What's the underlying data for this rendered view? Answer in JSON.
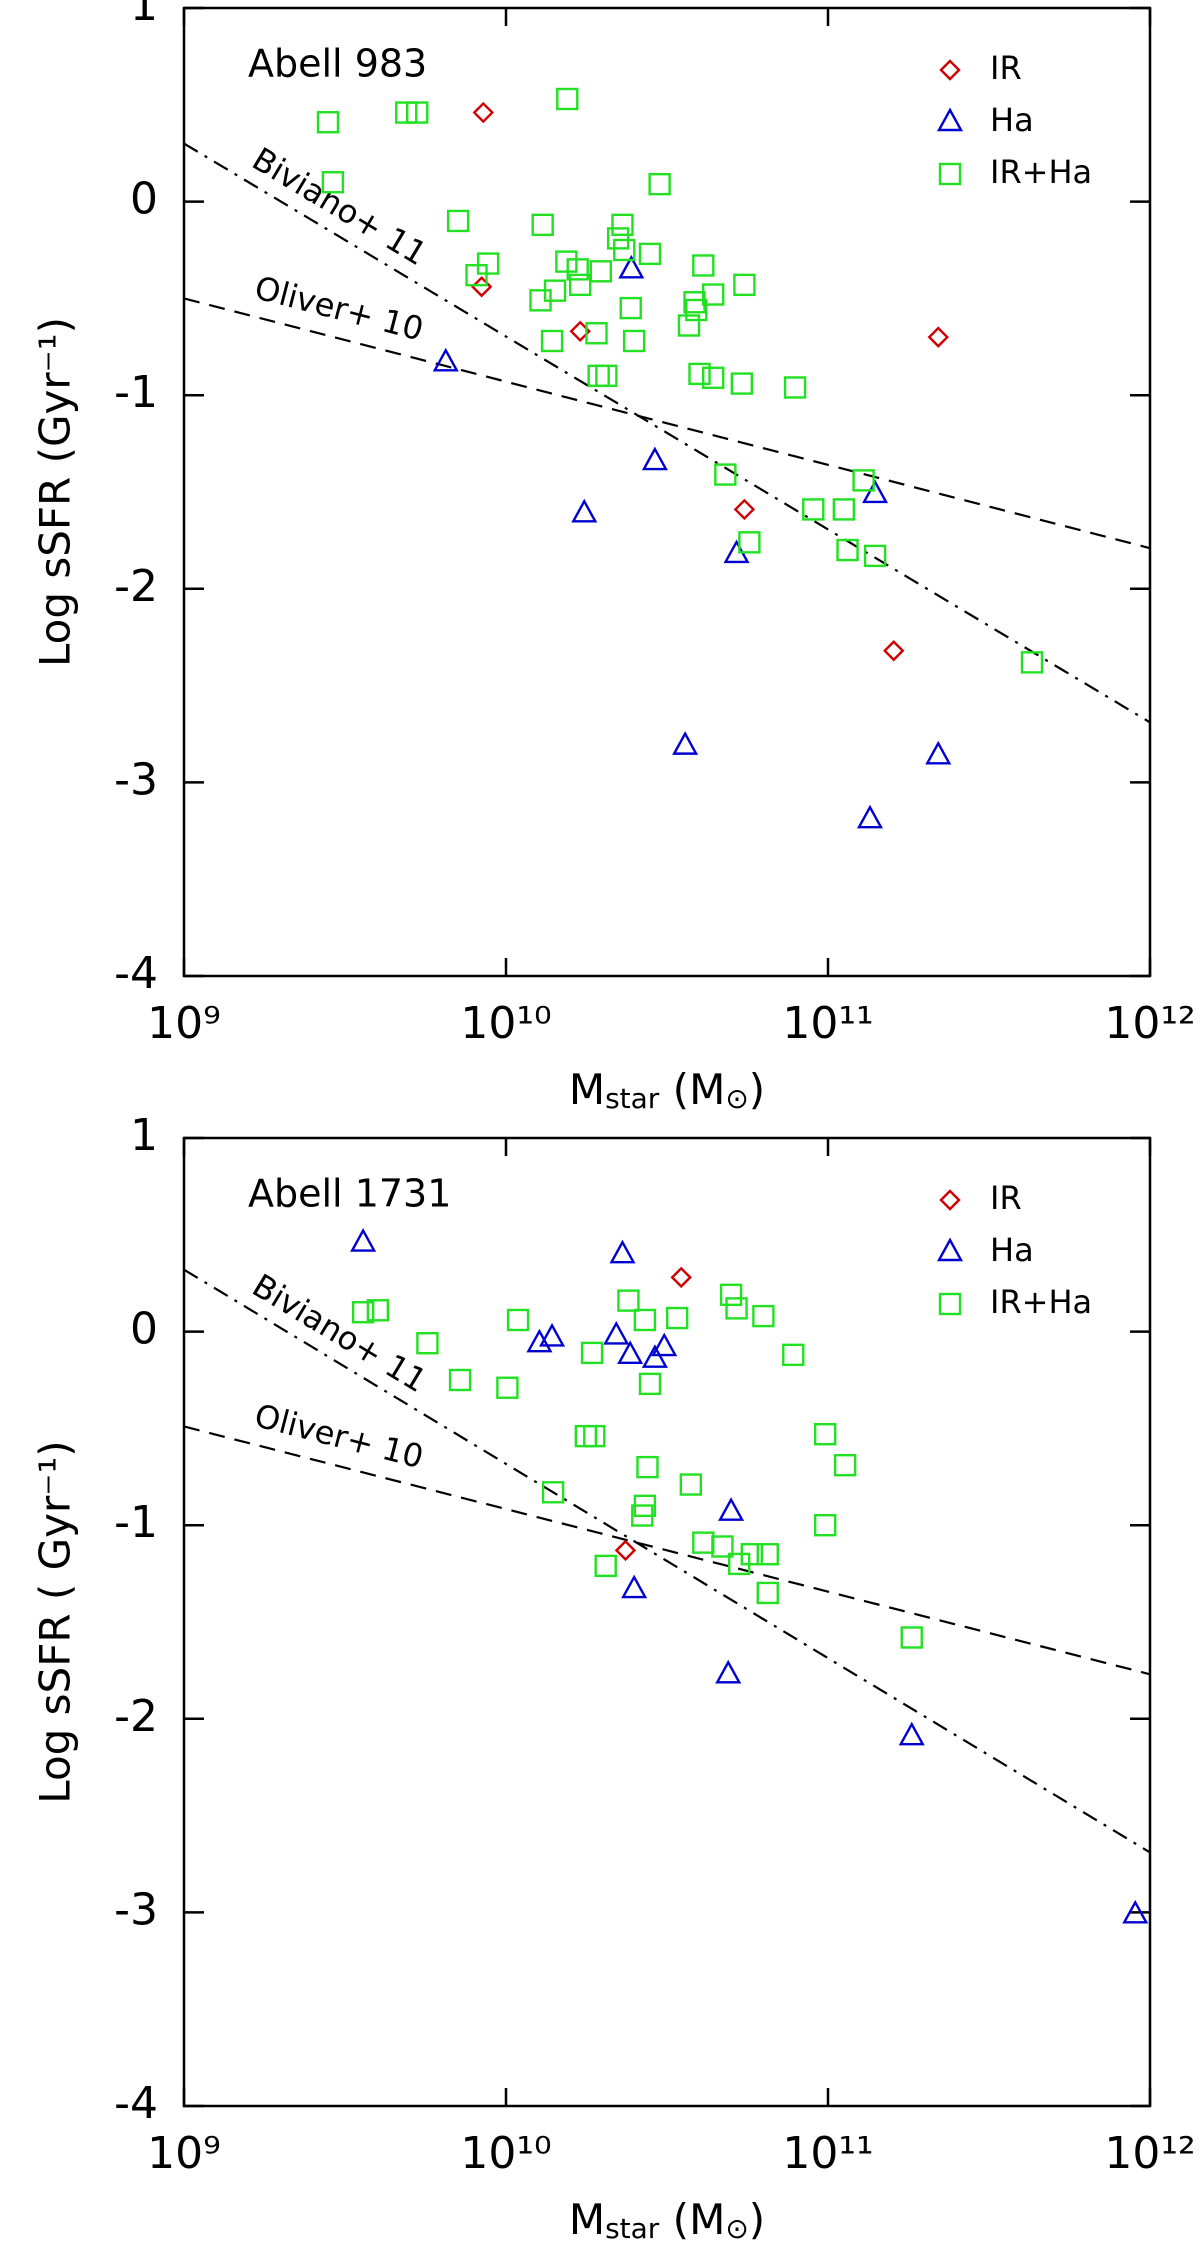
{
  "chart_data": [
    {
      "type": "scatter",
      "title": "Abell 983",
      "xlabel": [
        "M",
        "star",
        " (M",
        "⊙",
        ")"
      ],
      "ylabel": "Log sSFR (Gyr⁻¹)",
      "xlog": true,
      "xlim": [
        1000000000,
        1000000000000
      ],
      "xticks": [
        {
          "value": 1000000000,
          "label": "10⁹"
        },
        {
          "value": 10000000000,
          "label": "10¹⁰"
        },
        {
          "value": 100000000000,
          "label": "10¹¹"
        },
        {
          "value": 1000000000000,
          "label": "10¹²"
        }
      ],
      "ylim": [
        -4,
        1
      ],
      "yticks": [
        -4,
        -3,
        -2,
        -1,
        0,
        1
      ],
      "legend": "upper right",
      "series": [
        {
          "name": "IR",
          "color": "#d00000",
          "marker": "diamond",
          "x": [
            8500000000,
            8400000000,
            17000000000,
            55000000000,
            160000000000,
            220000000000
          ],
          "values": [
            0.46,
            -0.44,
            -0.67,
            -1.59,
            -2.32,
            -0.7
          ]
        },
        {
          "name": "Ha",
          "color": "#0000d0",
          "marker": "triangle",
          "x": [
            6500000000,
            17500000000,
            24500000000,
            29000000000,
            36000000000,
            52000000000,
            140000000000,
            135000000000,
            220000000000
          ],
          "values": [
            -0.83,
            -1.61,
            -0.35,
            -1.34,
            -2.81,
            -1.82,
            -1.51,
            -3.19,
            -2.86
          ]
        },
        {
          "name": "IR+Ha",
          "color": "#22e022",
          "marker": "square",
          "x": [
            2800000000,
            2900000000,
            4900000000,
            5300000000,
            15500000000,
            30000000000,
            7100000000,
            13000000000,
            8100000000,
            8800000000,
            12800000000,
            13900000000,
            14200000000,
            15400000000,
            16700000000,
            17000000000,
            19700000000,
            19100000000,
            19400000000,
            20500000000,
            22300000000,
            23000000000,
            23300000000,
            24400000000,
            25000000000,
            28000000000,
            41000000000,
            44000000000,
            37000000000,
            38500000000,
            39000000000,
            39900000000,
            44000000000,
            55000000000,
            54000000000,
            79000000000,
            48000000000,
            57000000000,
            90000000000,
            112000000000,
            115000000000,
            129000000000,
            140000000000,
            430000000000
          ],
          "values": [
            0.41,
            0.1,
            0.46,
            0.46,
            0.53,
            0.09,
            -0.1,
            -0.12,
            -0.38,
            -0.32,
            -0.51,
            -0.72,
            -0.46,
            -0.31,
            -0.35,
            -0.43,
            -0.36,
            -0.68,
            -0.9,
            -0.9,
            -0.19,
            -0.12,
            -0.25,
            -0.55,
            -0.72,
            -0.27,
            -0.33,
            -0.48,
            -0.64,
            -0.52,
            -0.56,
            -0.89,
            -0.91,
            -0.43,
            -0.94,
            -0.96,
            -1.41,
            -1.76,
            -1.59,
            -1.59,
            -1.8,
            -1.44,
            -1.83,
            -2.38
          ]
        }
      ],
      "lines": [
        {
          "name": "Biviano+ 11",
          "dash": "dashdot",
          "x": [
            1000000000,
            1000000000000
          ],
          "values": [
            0.3,
            -2.69
          ]
        },
        {
          "name": "Oliver+ 10",
          "dash": "dashed",
          "x": [
            1000000000,
            1000000000000
          ],
          "values": [
            -0.5,
            -1.79
          ]
        }
      ]
    },
    {
      "type": "scatter",
      "title": "Abell 1731",
      "xlabel": [
        "M",
        "star",
        " (M",
        "⊙",
        ")"
      ],
      "ylabel": "Log sSFR ( Gyr⁻¹)",
      "xlog": true,
      "xlim": [
        1000000000,
        1000000000000
      ],
      "xticks": [
        {
          "value": 1000000000,
          "label": "10⁹"
        },
        {
          "value": 10000000000,
          "label": "10¹⁰"
        },
        {
          "value": 100000000000,
          "label": "10¹¹"
        },
        {
          "value": 1000000000000,
          "label": "10¹²"
        }
      ],
      "ylim": [
        -4,
        1
      ],
      "yticks": [
        -4,
        -3,
        -2,
        -1,
        0,
        1
      ],
      "legend": "upper right",
      "series": [
        {
          "name": "IR",
          "color": "#d00000",
          "marker": "diamond",
          "x": [
            23500000000,
            35000000000
          ],
          "values": [
            -1.13,
            0.28
          ]
        },
        {
          "name": "Ha",
          "color": "#0000d0",
          "marker": "triangle",
          "x": [
            3600000000,
            23000000000,
            12700000000,
            13900000000,
            22000000000,
            24300000000,
            29000000000,
            31000000000,
            25000000000,
            50000000000,
            49000000000,
            182000000000,
            900000000000
          ],
          "values": [
            0.46,
            0.4,
            -0.06,
            -0.03,
            -0.02,
            -0.12,
            -0.14,
            -0.08,
            -1.33,
            -0.93,
            -1.77,
            -2.09,
            -3.01
          ]
        },
        {
          "name": "IR+Ha",
          "color": "#22e022",
          "marker": "square",
          "x": [
            3600000000,
            4000000000,
            5700000000,
            7200000000,
            10100000000,
            10900000000,
            18500000000,
            24000000000,
            27000000000,
            28000000000,
            34000000000,
            50000000000,
            52000000000,
            63000000000,
            78000000000,
            17700000000,
            18800000000,
            14000000000,
            27500000000,
            27000000000,
            26500000000,
            37500000000,
            20400000000,
            41000000000,
            47000000000,
            53000000000,
            58000000000,
            65000000000,
            65000000000,
            98000000000,
            113000000000,
            98000000000,
            182000000000
          ],
          "values": [
            0.1,
            0.11,
            -0.06,
            -0.25,
            -0.29,
            0.06,
            -0.11,
            0.16,
            0.06,
            -0.27,
            0.07,
            0.19,
            0.12,
            0.08,
            -0.12,
            -0.54,
            -0.54,
            -0.83,
            -0.7,
            -0.9,
            -0.95,
            -0.79,
            -1.21,
            -1.09,
            -1.11,
            -1.2,
            -1.15,
            -1.15,
            -1.35,
            -0.53,
            -0.69,
            -1.0,
            -1.58
          ]
        }
      ],
      "lines": [
        {
          "name": "Biviano+ 11",
          "dash": "dashdot",
          "x": [
            1000000000,
            1000000000000
          ],
          "values": [
            0.32,
            -2.69
          ]
        },
        {
          "name": "Oliver+ 10",
          "dash": "dashed",
          "x": [
            1000000000,
            1000000000000
          ],
          "values": [
            -0.49,
            -1.77
          ]
        }
      ]
    }
  ]
}
